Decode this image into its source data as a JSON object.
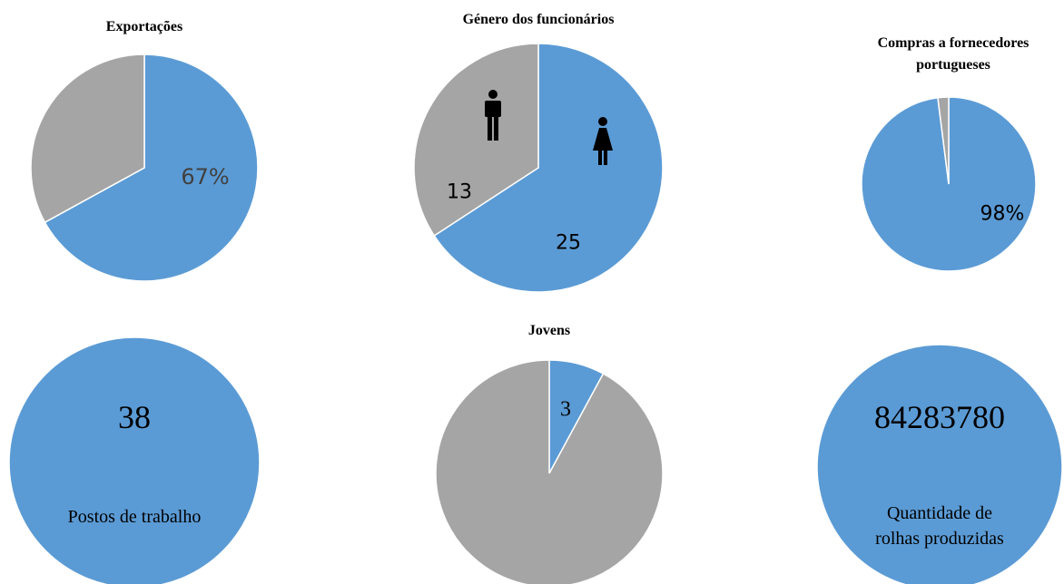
{
  "chart_data": [
    {
      "type": "pie",
      "title": "Exportações",
      "values": [
        67,
        33
      ],
      "value_labels": [
        "67%",
        null
      ],
      "colors": [
        "#5b9bd5",
        "#a5a5a5"
      ]
    },
    {
      "type": "pie",
      "title": "Género dos funcionários",
      "values": [
        25,
        13
      ],
      "data_labels": [
        true,
        true
      ],
      "colors": [
        "#5b9bd5",
        "#a5a5a5"
      ]
    },
    {
      "type": "pie",
      "title": "Compras a fornecedores portugueses",
      "values": [
        98,
        2
      ],
      "value_labels": [
        "98%",
        null
      ],
      "colors": [
        "#5b9bd5",
        "#a5a5a5"
      ]
    },
    {
      "type": "pie",
      "values": [
        38
      ],
      "data_labels": [
        true
      ],
      "annotation": "Postos de trabalho",
      "colors": [
        "#5b9bd5"
      ]
    },
    {
      "type": "pie",
      "title": "Jovens",
      "values": [
        3,
        35
      ],
      "data_labels": [
        true,
        false
      ],
      "colors": [
        "#5b9bd5",
        "#a5a5a5"
      ]
    },
    {
      "type": "pie",
      "values": [
        84283780
      ],
      "data_labels": [
        true
      ],
      "annotation": "Quantidade de rolhas produzidas",
      "colors": [
        "#5b9bd5"
      ]
    }
  ]
}
